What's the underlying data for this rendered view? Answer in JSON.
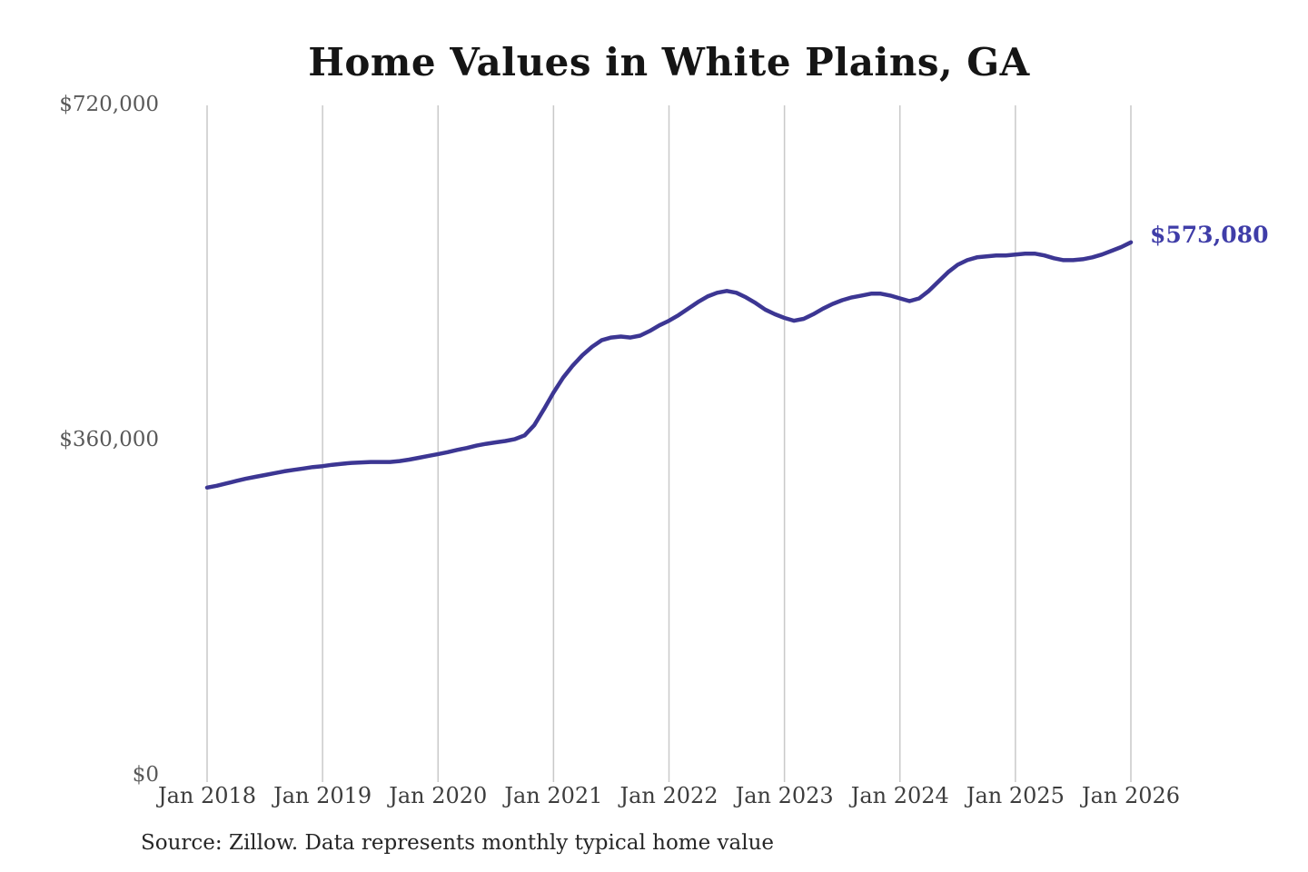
{
  "page": {
    "title": "Home Values in White Plains, GA",
    "end_value_label": "$573,080",
    "source_note": "Source: Zillow. Data represents monthly typical home value"
  },
  "colors": {
    "line": "#3c3693",
    "end_label": "#3f3da8",
    "grid": "#c9c9c9",
    "title_text": "#151515",
    "y_tick_text": "#595959",
    "x_tick_text": "#3d3d3d",
    "source_text": "#262626",
    "background": "#ffffff"
  },
  "chart_data": {
    "type": "line",
    "title": "Home Values in White Plains, GA",
    "series_name": "Monthly typical home value (Zillow)",
    "xlabel": "",
    "ylabel": "",
    "ylim": [
      0,
      720000
    ],
    "y_ticks": [
      0,
      360000,
      720000
    ],
    "y_tick_labels": [
      "$0",
      "$360,000",
      "$720,000"
    ],
    "x_tick_labels": [
      "Jan 2018",
      "Jan 2019",
      "Jan 2020",
      "Jan 2021",
      "Jan 2022",
      "Jan 2023",
      "Jan 2024",
      "Jan 2025",
      "Jan 2026"
    ],
    "grid": "vertical-only",
    "legend": "none",
    "end_annotation": {
      "text": "$573,080",
      "value": 573080,
      "month": "2026-01"
    },
    "months": [
      "2018-01",
      "2018-02",
      "2018-03",
      "2018-04",
      "2018-05",
      "2018-06",
      "2018-07",
      "2018-08",
      "2018-09",
      "2018-10",
      "2018-11",
      "2018-12",
      "2019-01",
      "2019-02",
      "2019-03",
      "2019-04",
      "2019-05",
      "2019-06",
      "2019-07",
      "2019-08",
      "2019-09",
      "2019-10",
      "2019-11",
      "2019-12",
      "2020-01",
      "2020-02",
      "2020-03",
      "2020-04",
      "2020-05",
      "2020-06",
      "2020-07",
      "2020-08",
      "2020-09",
      "2020-10",
      "2020-11",
      "2020-12",
      "2021-01",
      "2021-02",
      "2021-03",
      "2021-04",
      "2021-05",
      "2021-06",
      "2021-07",
      "2021-08",
      "2021-09",
      "2021-10",
      "2021-11",
      "2021-12",
      "2022-01",
      "2022-02",
      "2022-03",
      "2022-04",
      "2022-05",
      "2022-06",
      "2022-07",
      "2022-08",
      "2022-09",
      "2022-10",
      "2022-11",
      "2022-12",
      "2023-01",
      "2023-02",
      "2023-03",
      "2023-04",
      "2023-05",
      "2023-06",
      "2023-07",
      "2023-08",
      "2023-09",
      "2023-10",
      "2023-11",
      "2023-12",
      "2024-01",
      "2024-02",
      "2024-03",
      "2024-04",
      "2024-05",
      "2024-06",
      "2024-07",
      "2024-08",
      "2024-09",
      "2024-10",
      "2024-11",
      "2024-12",
      "2025-01",
      "2025-02",
      "2025-03",
      "2025-04",
      "2025-05",
      "2025-06",
      "2025-07",
      "2025-08",
      "2025-09",
      "2025-10",
      "2025-11",
      "2025-12",
      "2026-01"
    ],
    "values": [
      310000,
      312000,
      314500,
      317000,
      319500,
      321500,
      323500,
      325500,
      327500,
      329000,
      330500,
      332000,
      333000,
      334500,
      335500,
      336500,
      337000,
      337500,
      337500,
      337500,
      338500,
      340000,
      342000,
      344000,
      346000,
      348000,
      350500,
      352500,
      355000,
      357000,
      358500,
      360000,
      362000,
      366000,
      377000,
      394000,
      412000,
      428000,
      441000,
      452000,
      461000,
      468000,
      471000,
      472000,
      471000,
      473000,
      478000,
      484000,
      489000,
      495000,
      502000,
      509000,
      515000,
      519000,
      521000,
      519000,
      514000,
      508000,
      501000,
      496000,
      492000,
      489000,
      491000,
      496000,
      502000,
      507000,
      511000,
      514000,
      516000,
      518000,
      518000,
      516000,
      513000,
      510000,
      513000,
      521000,
      531000,
      541000,
      549000,
      554000,
      557000,
      558000,
      559000,
      559000,
      560000,
      561000,
      561000,
      559000,
      556000,
      554000,
      554000,
      555000,
      557000,
      560000,
      564000,
      568000,
      573080
    ]
  }
}
